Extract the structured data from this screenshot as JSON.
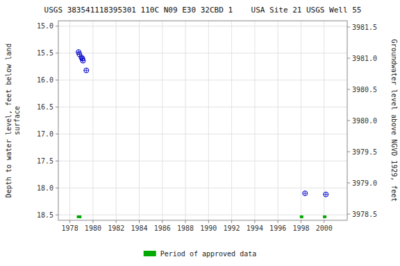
{
  "chart_data": {
    "type": "scatter",
    "title": "USGS 383541118395301 110C N09 E30 32CBD 1    USA Site 21 USGS Well 55",
    "y_label": "Depth to water level, feet below land\nsurface",
    "y2_label": "Groundwater level above NGVD 1929, feet",
    "xlim": [
      1977,
      2002
    ],
    "xticks": [
      1978,
      1980,
      1982,
      1984,
      1986,
      1988,
      1990,
      1992,
      1994,
      1996,
      1998,
      2000
    ],
    "ylim": [
      18.6,
      14.9
    ],
    "yticks": [
      {
        "value": 15.0,
        "label": "15.0"
      },
      15.5,
      {
        "value": 16.0,
        "label": "16.0"
      },
      16.5,
      {
        "value": 17.0,
        "label": "17.0"
      },
      17.5,
      {
        "value": 18.0,
        "label": "18.0"
      },
      18.5
    ],
    "y2lim": [
      3978.4,
      3981.6
    ],
    "y2ticks": [
      3978.5,
      {
        "value": 3979.0,
        "label": "3979.0"
      },
      3979.5,
      {
        "value": 3980.0,
        "label": "3980.0"
      },
      3980.5,
      {
        "value": 3981.0,
        "label": "3981.0"
      },
      3981.5
    ],
    "grid": true,
    "series": [
      {
        "type": "scatter",
        "color": "#0000cc",
        "marker": "circle-cross",
        "x": [
          1978.75,
          1978.82,
          1979.0,
          1979.08,
          1979.13,
          1979.42,
          1998.35,
          2000.15
        ],
        "values": [
          15.48,
          15.52,
          15.58,
          15.6,
          15.64,
          15.82,
          18.1,
          18.12
        ]
      },
      {
        "type": "period",
        "name": "Period of approved data",
        "color": "#00aa00",
        "x_start": [
          1978.6,
          1997.9,
          1999.9
        ],
        "x_end": [
          1979.0,
          1998.2,
          2000.2
        ]
      }
    ]
  }
}
